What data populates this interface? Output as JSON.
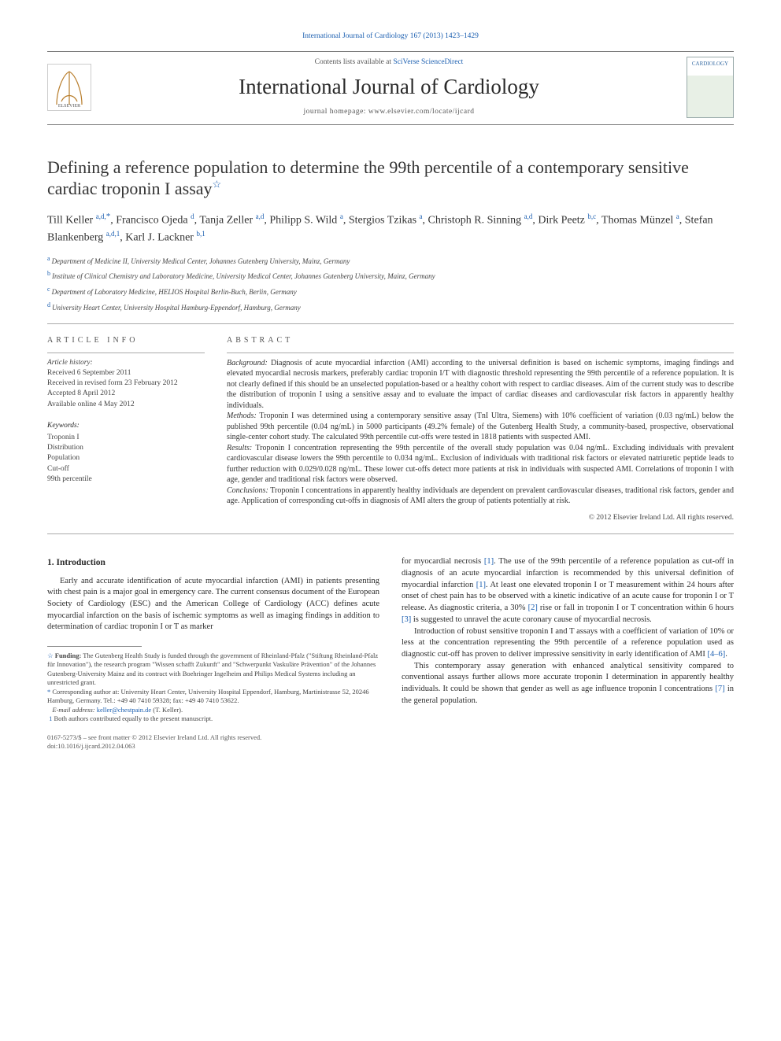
{
  "top_link": "International Journal of Cardiology 167 (2013) 1423–1429",
  "banner": {
    "contents_prefix": "Contents lists available at ",
    "contents_link": "SciVerse ScienceDirect",
    "journal": "International Journal of Cardiology",
    "homepage_label": "journal homepage: ",
    "homepage_url": "www.elsevier.com/locate/ijcard",
    "cover_label": "CARDIOLOGY"
  },
  "title": "Defining a reference population to determine the 99th percentile of a contemporary sensitive cardiac troponin I assay",
  "authors_html": "Till Keller <sup>a,d,</sup><corr>*</corr>, Francisco Ojeda <sup>d</sup>, Tanja Zeller <sup>a,d</sup>, Philipp S. Wild <sup>a</sup>, Stergios Tzikas <sup>a</sup>, Christoph R. Sinning <sup>a,d</sup>, Dirk Peetz <sup>b,c</sup>, Thomas Münzel <sup>a</sup>, Stefan Blankenberg <sup>a,d,1</sup>, Karl J. Lackner <sup>b,1</sup>",
  "affiliations": [
    {
      "tag": "a",
      "text": "Department of Medicine II, University Medical Center, Johannes Gutenberg University, Mainz, Germany"
    },
    {
      "tag": "b",
      "text": "Institute of Clinical Chemistry and Laboratory Medicine, University Medical Center, Johannes Gutenberg University, Mainz, Germany"
    },
    {
      "tag": "c",
      "text": "Department of Laboratory Medicine, HELIOS Hospital Berlin-Buch, Berlin, Germany"
    },
    {
      "tag": "d",
      "text": "University Heart Center, University Hospital Hamburg-Eppendorf, Hamburg, Germany"
    }
  ],
  "article_info_head": "ARTICLE INFO",
  "abstract_head": "ABSTRACT",
  "history": {
    "label": "Article history:",
    "received": "Received 6 September 2011",
    "revised": "Received in revised form 23 February 2012",
    "accepted": "Accepted 8 April 2012",
    "online": "Available online 4 May 2012"
  },
  "keywords_label": "Keywords:",
  "keywords": [
    "Troponin I",
    "Distribution",
    "Population",
    "Cut-off",
    "99th percentile"
  ],
  "abstract": {
    "background_label": "Background:",
    "background": " Diagnosis of acute myocardial infarction (AMI) according to the universal definition is based on ischemic symptoms, imaging findings and elevated myocardial necrosis markers, preferably cardiac troponin I/T with diagnostic threshold representing the 99th percentile of a reference population. It is not clearly defined if this should be an unselected population-based or a healthy cohort with respect to cardiac diseases. Aim of the current study was to describe the distribution of troponin I using a sensitive assay and to evaluate the impact of cardiac diseases and cardiovascular risk factors in apparently healthy individuals.",
    "methods_label": "Methods:",
    "methods": " Troponin I was determined using a contemporary sensitive assay (TnI Ultra, Siemens) with 10% coefficient of variation (0.03 ng/mL) below the published 99th percentile (0.04 ng/mL) in 5000 participants (49.2% female) of the Gutenberg Health Study, a community-based, prospective, observational single-center cohort study. The calculated 99th percentile cut-offs were tested in 1818 patients with suspected AMI.",
    "results_label": "Results:",
    "results": " Troponin I concentration representing the 99th percentile of the overall study population was 0.04 ng/mL. Excluding individuals with prevalent cardiovascular disease lowers the 99th percentile to 0.034 ng/mL. Exclusion of individuals with traditional risk factors or elevated natriuretic peptide leads to further reduction with 0.029/0.028 ng/mL. These lower cut-offs detect more patients at risk in individuals with suspected AMI. Correlations of troponin I with age, gender and traditional risk factors were observed.",
    "conclusions_label": "Conclusions:",
    "conclusions": " Troponin I concentrations in apparently healthy individuals are dependent on prevalent cardiovascular diseases, traditional risk factors, gender and age. Application of corresponding cut-offs in diagnosis of AMI alters the group of patients potentially at risk."
  },
  "copyright": "© 2012 Elsevier Ireland Ltd. All rights reserved.",
  "intro_head": "1. Introduction",
  "col_left": {
    "p1": "Early and accurate identification of acute myocardial infarction (AMI) in patients presenting with chest pain is a major goal in emergency care. The current consensus document of the European Society of Cardiology (ESC) and the American College of Cardiology (ACC) defines acute myocardial infarction on the basis of ischemic symptoms as well as imaging findings in addition to determination of cardiac troponin I or T as marker"
  },
  "col_right": {
    "p1_pre": "for myocardial necrosis ",
    "p1_ref1": "[1]",
    "p1_mid": ". The use of the 99th percentile of a reference population as cut-off in diagnosis of an acute myocardial infarction is recommended by this universal definition of myocardial infarction ",
    "p1_ref1b": "[1]",
    "p1_post": ". At least one elevated troponin I or T measurement within 24 hours after onset of chest pain has to be observed with a kinetic indicative of an acute cause for troponin I or T release. As diagnostic criteria, a 30% ",
    "p1_ref2": "[2]",
    "p1_mid2": " rise or fall in troponin I or T concentration within 6 hours ",
    "p1_ref3": "[3]",
    "p1_end": " is suggested to unravel the acute coronary cause of myocardial necrosis.",
    "p2_pre": "Introduction of robust sensitive troponin I and T assays with a coefficient of variation of 10% or less at the concentration representing the 99th percentile of a reference population used as diagnostic cut-off has proven to deliver impressive sensitivity in early identification of AMI ",
    "p2_ref": "[4–6]",
    "p2_post": ".",
    "p3_pre": "This contemporary assay generation with enhanced analytical sensitivity compared to conventional assays further allows more accurate troponin I determination in apparently healthy individuals. It could be shown that gender as well as age influence troponin I concentrations ",
    "p3_ref": "[7]",
    "p3_post": " in the general population."
  },
  "footnotes": {
    "funding_sym": "☆",
    "funding_label": "Funding:",
    "funding": " The Gutenberg Health Study is funded through the government of Rheinland-Pfalz (\"Stiftung Rheinland-Pfalz für Innovation\"), the research program \"Wissen schafft Zukunft\" and \"Schwerpunkt Vaskuläre Prävention\" of the Johannes Gutenberg-University Mainz and its contract with Boehringer Ingelheim and Philips Medical Systems including an unrestricted grant.",
    "corr_sym": "*",
    "corr": " Corresponding author at: University Heart Center, University Hospital Eppendorf, Hamburg, Martinistrasse 52, 20246 Hamburg, Germany. Tel.: +49 40 7410 59328; fax: +49 40 7410 53622.",
    "email_label": "E-mail address: ",
    "email": "keller@chestpain.de",
    "email_who": " (T. Keller).",
    "note1_sym": "1",
    "note1": " Both authors contributed equally to the present manuscript."
  },
  "bottom": {
    "line1": "0167-5273/$ – see front matter © 2012 Elsevier Ireland Ltd. All rights reserved.",
    "line2": "doi:10.1016/j.ijcard.2012.04.063"
  },
  "colors": {
    "link": "#1a5eb0",
    "text": "#2a2a2a",
    "rule": "#aaaaaa"
  }
}
